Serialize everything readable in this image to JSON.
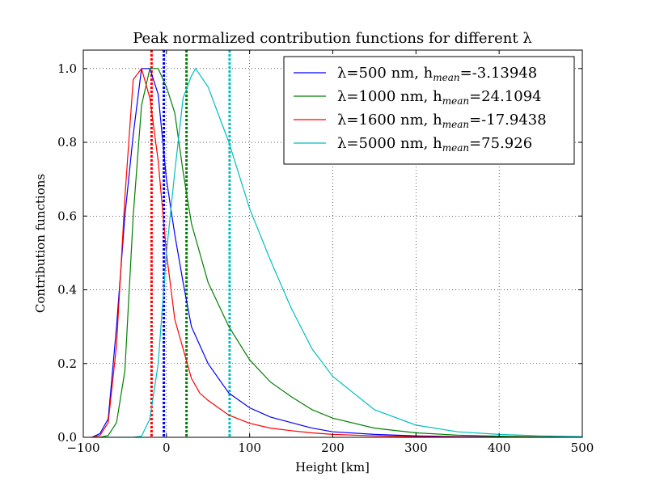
{
  "chart_data": {
    "type": "line",
    "title": "Peak normalized contribution functions for different λ",
    "xlabel": "Height [km]",
    "ylabel": "Contribution functions",
    "xlim": [
      -100,
      500
    ],
    "ylim": [
      0,
      1.05
    ],
    "xticks": [
      -100,
      0,
      100,
      200,
      300,
      400,
      500
    ],
    "xtick_labels": [
      "−100",
      "0",
      "100",
      "200",
      "300",
      "400",
      "500"
    ],
    "yticks": [
      0,
      0.2,
      0.4,
      0.6,
      0.8,
      1.0
    ],
    "ytick_labels": [
      "0.0",
      "0.2",
      "0.4",
      "0.6",
      "0.8",
      "1.0"
    ],
    "grid": true,
    "legend_position": "top-right",
    "series": [
      {
        "name": "λ=500 nm, h_mean=-3.13948",
        "legend_main": "λ=500 nm, h",
        "legend_sub": "mean",
        "legend_tail": "=-3.13948",
        "color": "#0000ff",
        "h_mean": -3.13948,
        "x": [
          -90,
          -80,
          -70,
          -60,
          -50,
          -40,
          -30,
          -20,
          -10,
          0,
          10,
          20,
          30,
          40,
          50,
          75,
          100,
          125,
          150,
          175,
          200,
          250,
          300,
          350,
          400,
          450,
          500
        ],
        "y": [
          0.0,
          0.01,
          0.05,
          0.3,
          0.6,
          0.82,
          1.0,
          1.0,
          0.93,
          0.7,
          0.55,
          0.42,
          0.3,
          0.25,
          0.2,
          0.12,
          0.08,
          0.055,
          0.04,
          0.025,
          0.015,
          0.008,
          0.004,
          0.002,
          0.001,
          0.0,
          0.0
        ]
      },
      {
        "name": "λ=1000 nm, h_mean=24.1094",
        "legend_main": "λ=1000 nm, h",
        "legend_sub": "mean",
        "legend_tail": "=24.1094",
        "color": "#008000",
        "h_mean": 24.1094,
        "x": [
          -90,
          -80,
          -70,
          -60,
          -50,
          -40,
          -30,
          -20,
          -10,
          0,
          10,
          20,
          30,
          40,
          50,
          75,
          100,
          125,
          150,
          175,
          200,
          250,
          300,
          350,
          400,
          450,
          500
        ],
        "y": [
          0.0,
          0.0,
          0.005,
          0.04,
          0.18,
          0.6,
          0.9,
          1.0,
          1.0,
          0.95,
          0.88,
          0.72,
          0.58,
          0.5,
          0.42,
          0.3,
          0.21,
          0.15,
          0.11,
          0.075,
          0.052,
          0.025,
          0.012,
          0.006,
          0.003,
          0.001,
          0.0
        ]
      },
      {
        "name": "λ=1600 nm, h_mean=-17.9438",
        "legend_main": "λ=1600 nm, h",
        "legend_sub": "mean",
        "legend_tail": "=-17.9438",
        "color": "#ff0000",
        "h_mean": -17.9438,
        "x": [
          -90,
          -80,
          -70,
          -60,
          -50,
          -40,
          -30,
          -20,
          -10,
          0,
          10,
          20,
          30,
          40,
          50,
          75,
          100,
          125,
          150,
          175,
          200,
          250,
          300,
          350,
          400,
          450,
          500
        ],
        "y": [
          0.0,
          0.005,
          0.04,
          0.25,
          0.65,
          0.97,
          1.0,
          0.92,
          0.75,
          0.5,
          0.32,
          0.24,
          0.16,
          0.12,
          0.1,
          0.06,
          0.038,
          0.025,
          0.018,
          0.012,
          0.008,
          0.004,
          0.002,
          0.001,
          0.0,
          0.0,
          0.0
        ]
      },
      {
        "name": "λ=5000 nm, h_mean=75.926",
        "legend_main": "λ=5000 nm, h",
        "legend_sub": "mean",
        "legend_tail": "=75.926",
        "color": "#00bfbf",
        "h_mean": 75.926,
        "x": [
          -90,
          -80,
          -70,
          -60,
          -50,
          -40,
          -30,
          -20,
          -10,
          0,
          10,
          20,
          30,
          35,
          50,
          75,
          100,
          125,
          150,
          175,
          200,
          250,
          300,
          350,
          400,
          450,
          500
        ],
        "y": [
          0.0,
          0.0,
          0.0,
          0.0,
          0.0,
          0.0,
          0.003,
          0.05,
          0.2,
          0.5,
          0.72,
          0.92,
          0.98,
          1.0,
          0.95,
          0.8,
          0.62,
          0.48,
          0.35,
          0.24,
          0.165,
          0.075,
          0.033,
          0.015,
          0.008,
          0.004,
          0.002
        ]
      }
    ]
  }
}
